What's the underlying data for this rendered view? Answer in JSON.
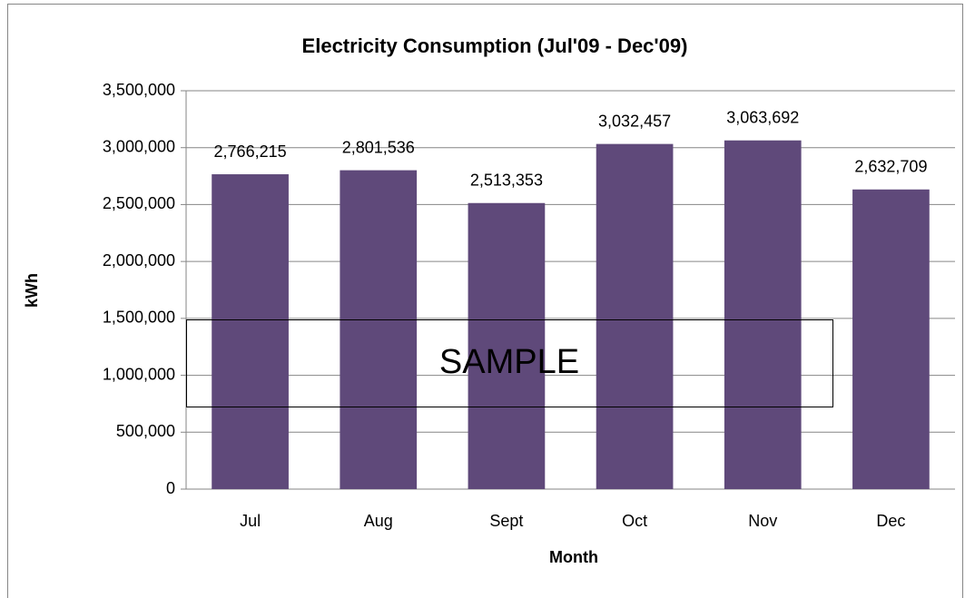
{
  "chart_data": {
    "type": "bar",
    "title": "Electricity Consumption (Jul'09 - Dec'09)",
    "x_label": "Month",
    "y_label": "kWh",
    "categories": [
      "Jul",
      "Aug",
      "Sept",
      "Oct",
      "Nov",
      "Dec"
    ],
    "values": [
      2766215,
      2801536,
      2513353,
      3032457,
      3063692,
      2632709
    ],
    "value_labels": [
      "2,766,215",
      "2,801,536",
      "2,513,353",
      "3,032,457",
      "3,063,692",
      "2,632,709"
    ],
    "color": "#5f497a",
    "ylim": [
      0,
      3500000
    ],
    "yticks": [
      0,
      {
        "value": 500000,
        "label": "500,000"
      },
      {
        "value": 1000000,
        "label": "1,000,000"
      },
      {
        "value": 1500000,
        "label": "1,500,000"
      },
      {
        "value": 2000000,
        "label": "2,000,000"
      },
      {
        "value": 2500000,
        "label": "2,500,000"
      },
      {
        "value": 3000000,
        "label": "3,000,000"
      },
      {
        "value": 3500000,
        "label": "3,500,000"
      }
    ],
    "grid": true,
    "annotation": "SAMPLE"
  }
}
